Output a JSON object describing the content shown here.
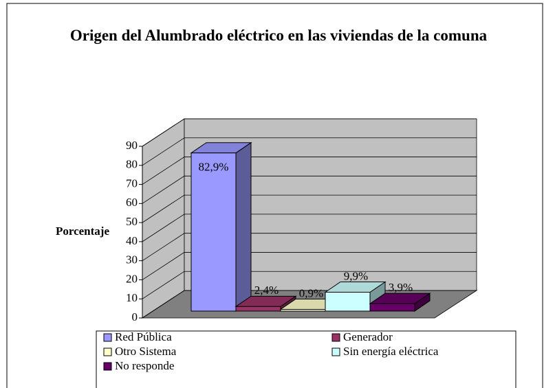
{
  "chart_data": {
    "type": "bar3d",
    "title": "Origen del Alumbrado eléctrico en las viviendas de la comuna",
    "y_label": "Porcentaje",
    "ylim": [
      0,
      90
    ],
    "yticks": [
      0,
      10,
      20,
      30,
      40,
      50,
      60,
      70,
      80,
      90
    ],
    "grid": true,
    "series": [
      {
        "name": "Red Pública",
        "color": "#9999ff",
        "values": [
          82.9
        ],
        "value_labels": [
          "82,9%"
        ]
      },
      {
        "name": "Generador",
        "color": "#993366",
        "values": [
          2.4
        ],
        "value_labels": [
          "2,4%"
        ]
      },
      {
        "name": "Otro Sistema",
        "color": "#ffffcc",
        "values": [
          0.9
        ],
        "value_labels": [
          "0,9%"
        ]
      },
      {
        "name": "Sin energía eléctrica",
        "color": "#ccffff",
        "values": [
          9.9
        ],
        "value_labels": [
          "9,9%"
        ]
      },
      {
        "name": "No responde",
        "color": "#660066",
        "values": [
          3.9
        ],
        "value_labels": [
          "3,9%"
        ]
      }
    ]
  }
}
